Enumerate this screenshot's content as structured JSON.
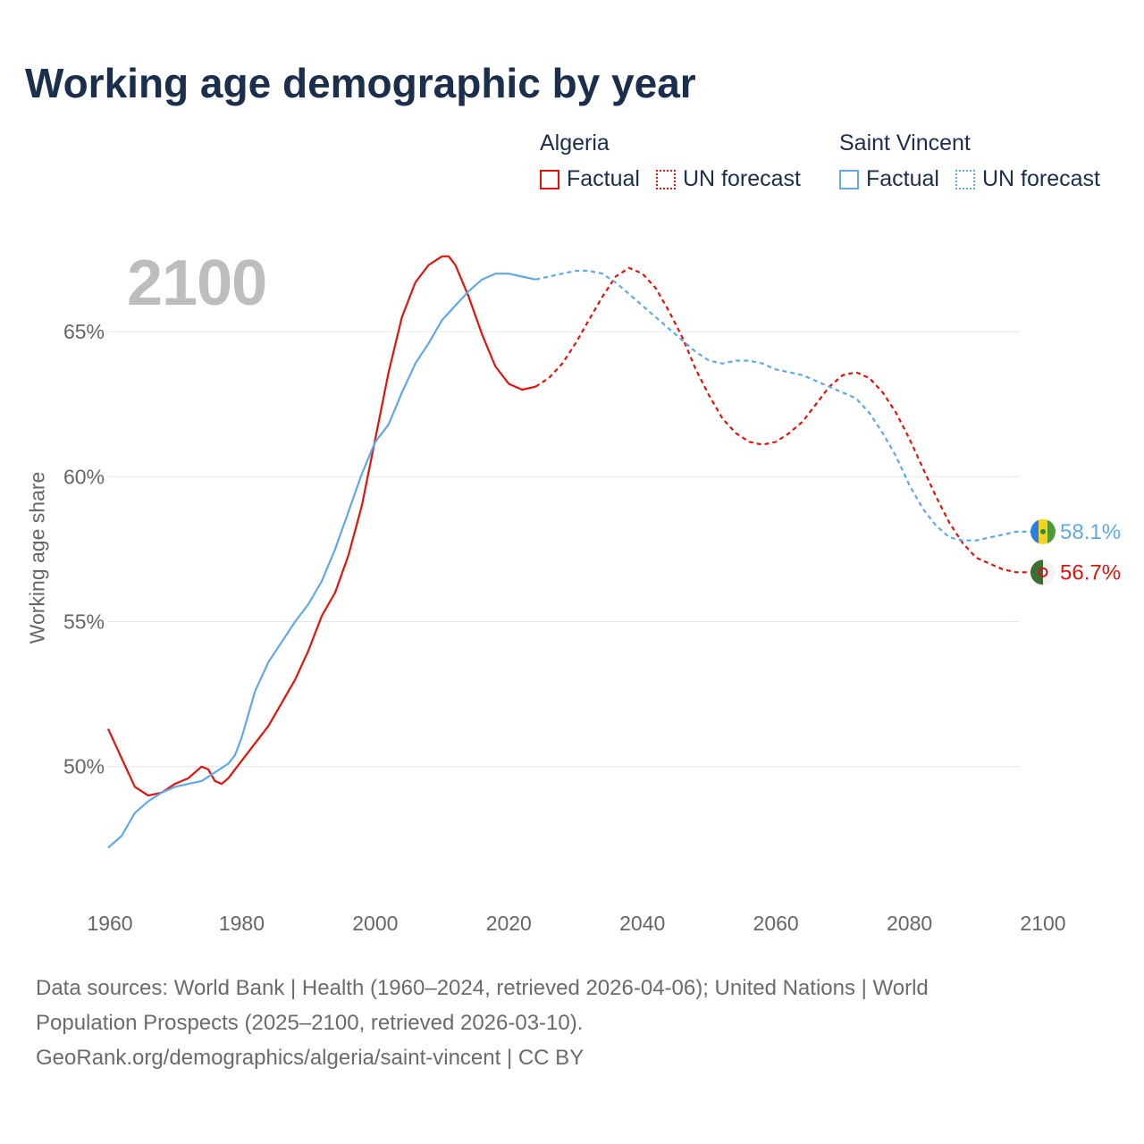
{
  "header": {
    "title": "Working age demographic by year"
  },
  "year_display": "2100",
  "legend": {
    "groups": [
      {
        "name": "Algeria",
        "factual_label": "Factual",
        "forecast_label": "UN forecast",
        "color": "#e3120b"
      },
      {
        "name": "Saint Vincent",
        "factual_label": "Factual",
        "forecast_label": "UN forecast",
        "color": "#5ea9e6"
      }
    ]
  },
  "footer": {
    "line1": "Data sources: World Bank | Health (1960–2024, retrieved 2026-04-06); United Nations | World",
    "line2": "Population Prospects (2025–2100, retrieved 2026-03-10).",
    "line3": "GeoRank.org/demographics/algeria/saint-vincent | CC BY"
  },
  "chart_data": {
    "type": "line",
    "title": "Working age demographic by year",
    "xlabel": "",
    "ylabel": "Working age share",
    "xlim": [
      1960,
      2100
    ],
    "ylim": [
      47.0,
      67.5
    ],
    "x_ticks": [
      1960,
      1980,
      2000,
      2020,
      2040,
      2060,
      2080,
      2100
    ],
    "y_ticks": [
      50,
      55,
      60,
      65
    ],
    "y_tick_labels": [
      "50%",
      "55%",
      "60%",
      "65%"
    ],
    "x_tick_labels": [
      "1960",
      "1980",
      "2000",
      "2020",
      "2040",
      "2060",
      "2080",
      "2100"
    ],
    "grid": "horizontal",
    "legend_position": "top-right",
    "factual_end_year": 2024,
    "series": [
      {
        "name": "Algeria",
        "color": "#e3120b",
        "end_label": "56.7%",
        "points": [
          [
            1960,
            51.3
          ],
          [
            1962,
            50.3
          ],
          [
            1964,
            49.3
          ],
          [
            1966,
            49.0
          ],
          [
            1968,
            49.1
          ],
          [
            1970,
            49.4
          ],
          [
            1972,
            49.6
          ],
          [
            1974,
            50.0
          ],
          [
            1975,
            49.9
          ],
          [
            1976,
            49.5
          ],
          [
            1977,
            49.4
          ],
          [
            1978,
            49.6
          ],
          [
            1980,
            50.2
          ],
          [
            1982,
            50.8
          ],
          [
            1984,
            51.4
          ],
          [
            1986,
            52.2
          ],
          [
            1988,
            53.0
          ],
          [
            1990,
            54.0
          ],
          [
            1992,
            55.2
          ],
          [
            1994,
            56.0
          ],
          [
            1996,
            57.3
          ],
          [
            1998,
            59.0
          ],
          [
            2000,
            61.3
          ],
          [
            2002,
            63.6
          ],
          [
            2004,
            65.5
          ],
          [
            2006,
            66.7
          ],
          [
            2008,
            67.3
          ],
          [
            2010,
            67.6
          ],
          [
            2011,
            67.6
          ],
          [
            2012,
            67.3
          ],
          [
            2014,
            66.2
          ],
          [
            2016,
            64.9
          ],
          [
            2018,
            63.8
          ],
          [
            2020,
            63.2
          ],
          [
            2022,
            63.0
          ],
          [
            2024,
            63.1
          ],
          [
            2026,
            63.4
          ],
          [
            2028,
            63.9
          ],
          [
            2030,
            64.6
          ],
          [
            2032,
            65.4
          ],
          [
            2034,
            66.2
          ],
          [
            2036,
            66.9
          ],
          [
            2038,
            67.2
          ],
          [
            2040,
            67.0
          ],
          [
            2042,
            66.5
          ],
          [
            2044,
            65.7
          ],
          [
            2046,
            64.8
          ],
          [
            2048,
            63.7
          ],
          [
            2050,
            62.8
          ],
          [
            2052,
            62.0
          ],
          [
            2054,
            61.5
          ],
          [
            2056,
            61.2
          ],
          [
            2058,
            61.1
          ],
          [
            2060,
            61.2
          ],
          [
            2062,
            61.5
          ],
          [
            2064,
            61.9
          ],
          [
            2066,
            62.5
          ],
          [
            2068,
            63.1
          ],
          [
            2070,
            63.5
          ],
          [
            2072,
            63.6
          ],
          [
            2074,
            63.4
          ],
          [
            2076,
            62.9
          ],
          [
            2078,
            62.2
          ],
          [
            2080,
            61.3
          ],
          [
            2082,
            60.3
          ],
          [
            2084,
            59.3
          ],
          [
            2086,
            58.4
          ],
          [
            2088,
            57.7
          ],
          [
            2090,
            57.2
          ],
          [
            2092,
            57.0
          ],
          [
            2094,
            56.8
          ],
          [
            2096,
            56.7
          ],
          [
            2098,
            56.7
          ],
          [
            2100,
            56.7
          ]
        ]
      },
      {
        "name": "Saint Vincent",
        "color": "#5ea9e6",
        "end_label": "58.1%",
        "points": [
          [
            1960,
            47.2
          ],
          [
            1962,
            47.6
          ],
          [
            1964,
            48.4
          ],
          [
            1966,
            48.8
          ],
          [
            1968,
            49.1
          ],
          [
            1970,
            49.3
          ],
          [
            1972,
            49.4
          ],
          [
            1974,
            49.5
          ],
          [
            1976,
            49.8
          ],
          [
            1978,
            50.1
          ],
          [
            1979,
            50.4
          ],
          [
            1980,
            51.0
          ],
          [
            1982,
            52.6
          ],
          [
            1984,
            53.6
          ],
          [
            1986,
            54.3
          ],
          [
            1988,
            55.0
          ],
          [
            1990,
            55.6
          ],
          [
            1992,
            56.4
          ],
          [
            1994,
            57.5
          ],
          [
            1996,
            58.8
          ],
          [
            1998,
            60.1
          ],
          [
            2000,
            61.2
          ],
          [
            2002,
            61.8
          ],
          [
            2004,
            62.9
          ],
          [
            2006,
            63.9
          ],
          [
            2008,
            64.6
          ],
          [
            2010,
            65.4
          ],
          [
            2012,
            65.9
          ],
          [
            2014,
            66.4
          ],
          [
            2016,
            66.8
          ],
          [
            2018,
            67.0
          ],
          [
            2020,
            67.0
          ],
          [
            2022,
            66.9
          ],
          [
            2024,
            66.8
          ],
          [
            2026,
            66.9
          ],
          [
            2028,
            67.0
          ],
          [
            2030,
            67.1
          ],
          [
            2032,
            67.1
          ],
          [
            2034,
            67.0
          ],
          [
            2036,
            66.7
          ],
          [
            2038,
            66.3
          ],
          [
            2040,
            65.9
          ],
          [
            2042,
            65.5
          ],
          [
            2044,
            65.1
          ],
          [
            2046,
            64.7
          ],
          [
            2048,
            64.3
          ],
          [
            2050,
            64.0
          ],
          [
            2052,
            63.9
          ],
          [
            2054,
            64.0
          ],
          [
            2056,
            64.0
          ],
          [
            2058,
            63.9
          ],
          [
            2060,
            63.7
          ],
          [
            2062,
            63.6
          ],
          [
            2064,
            63.5
          ],
          [
            2066,
            63.3
          ],
          [
            2068,
            63.1
          ],
          [
            2070,
            62.9
          ],
          [
            2072,
            62.7
          ],
          [
            2074,
            62.2
          ],
          [
            2076,
            61.5
          ],
          [
            2078,
            60.7
          ],
          [
            2080,
            59.7
          ],
          [
            2082,
            58.9
          ],
          [
            2084,
            58.3
          ],
          [
            2086,
            57.9
          ],
          [
            2088,
            57.8
          ],
          [
            2090,
            57.8
          ],
          [
            2092,
            57.9
          ],
          [
            2094,
            58.0
          ],
          [
            2096,
            58.1
          ],
          [
            2098,
            58.1
          ],
          [
            2100,
            58.1
          ]
        ]
      }
    ]
  }
}
